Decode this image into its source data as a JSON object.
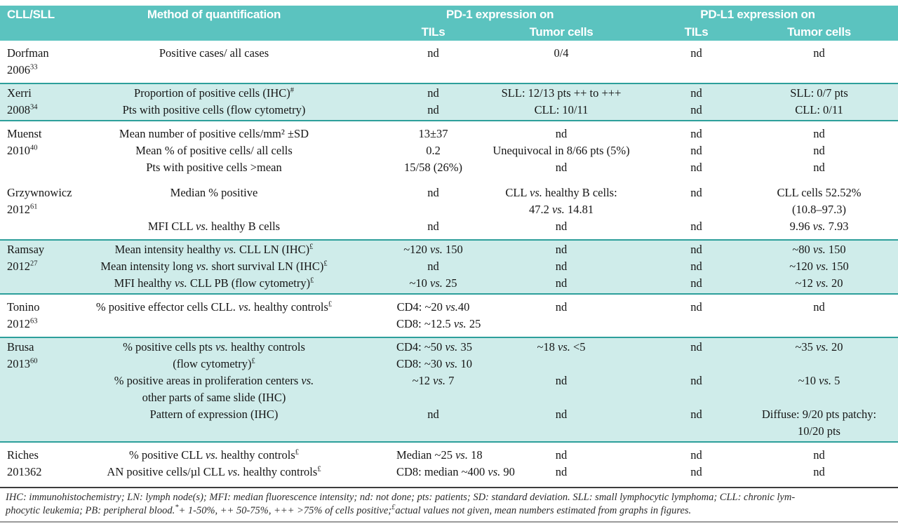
{
  "table": {
    "header": {
      "col1": "CLL/SLL",
      "col2": "Method of quantification",
      "pd1_group": "PD-1 expression on",
      "pdl1_group": "PD-L1 expression on",
      "sub": [
        "TILs",
        "Tumor cells",
        "TILs",
        "Tumor cells"
      ]
    },
    "groups": [
      {
        "study": {
          "name": "Dorfman",
          "year": "2006",
          "ref": "33"
        },
        "shaded": false,
        "rows": [
          {
            "method": [
              "Positive cases/ all cases"
            ],
            "pd1_tils": [
              "nd"
            ],
            "pd1_tumor": [
              "0/4"
            ],
            "pdl1_tils": [
              "nd"
            ],
            "pdl1_tumor": [
              "nd"
            ]
          }
        ]
      },
      {
        "study": {
          "name": "Xerri",
          "year": "2008",
          "ref": "34"
        },
        "shaded": true,
        "rows": [
          {
            "method": [
              "Proportion of positive cells (IHC)#"
            ],
            "pd1_tils": [
              "nd"
            ],
            "pd1_tumor": [
              "SLL: 12/13 pts ++ to +++"
            ],
            "pdl1_tils": [
              "nd"
            ],
            "pdl1_tumor": [
              "SLL: 0/7 pts"
            ]
          },
          {
            "method": [
              "Pts with positive cells (flow cytometry)"
            ],
            "pd1_tils": [
              "nd"
            ],
            "pd1_tumor": [
              "CLL: 10/11"
            ],
            "pdl1_tils": [
              "nd"
            ],
            "pdl1_tumor": [
              "CLL: 0/11"
            ]
          }
        ]
      },
      {
        "study": {
          "name": "Muenst",
          "year": "2010",
          "ref": "40"
        },
        "shaded": false,
        "rows": [
          {
            "method": [
              "Mean number of positive cells/mm² ±SD"
            ],
            "pd1_tils": [
              "13±37"
            ],
            "pd1_tumor": [
              "nd"
            ],
            "pdl1_tils": [
              "nd"
            ],
            "pdl1_tumor": [
              "nd"
            ]
          },
          {
            "method": [
              "Mean % of positive cells/ all cells"
            ],
            "pd1_tils": [
              "0.2"
            ],
            "pd1_tumor": [
              "Unequivocal in 8/66 pts (5%)"
            ],
            "pdl1_tils": [
              "nd"
            ],
            "pdl1_tumor": [
              "nd"
            ]
          },
          {
            "method": [
              "Pts with positive cells >mean"
            ],
            "pd1_tils": [
              "15/58 (26%)"
            ],
            "pd1_tumor": [
              "nd"
            ],
            "pdl1_tils": [
              "nd"
            ],
            "pdl1_tumor": [
              "nd"
            ]
          }
        ]
      },
      {
        "study": {
          "name": "Grzywnowicz",
          "year": "2012",
          "ref": "61"
        },
        "shaded": false,
        "rows": [
          {
            "method": [
              "Median % positive"
            ],
            "pd1_tils": [
              "nd"
            ],
            "pd1_tumor": [
              "CLL vs. healthy B cells:",
              "47.2 vs. 14.81"
            ],
            "pdl1_tils": [
              "nd"
            ],
            "pdl1_tumor": [
              "CLL cells 52.52%",
              "(10.8–97.3)"
            ]
          },
          {
            "method": [
              "MFI CLL vs. healthy B cells"
            ],
            "pd1_tils": [
              "nd"
            ],
            "pd1_tumor": [
              "nd"
            ],
            "pdl1_tils": [
              "nd"
            ],
            "pdl1_tumor": [
              "9.96 vs. 7.93"
            ]
          }
        ]
      },
      {
        "study": {
          "name": "Ramsay",
          "year": "2012",
          "ref": "27"
        },
        "shaded": true,
        "rows": [
          {
            "method": [
              "Mean intensity healthy vs. CLL LN (IHC)£"
            ],
            "pd1_tils": [
              "~120 vs. 150"
            ],
            "pd1_tumor": [
              "nd"
            ],
            "pdl1_tils": [
              "nd"
            ],
            "pdl1_tumor": [
              "~80 vs. 150"
            ]
          },
          {
            "method": [
              "Mean intensity long vs. short survival LN (IHC)£"
            ],
            "pd1_tils": [
              "nd"
            ],
            "pd1_tumor": [
              "nd"
            ],
            "pdl1_tils": [
              "nd"
            ],
            "pdl1_tumor": [
              "~120 vs. 150"
            ]
          },
          {
            "method": [
              "MFI healthy vs. CLL PB (flow cytometry)£"
            ],
            "pd1_tils": [
              "~10 vs. 25"
            ],
            "pd1_tumor": [
              "nd"
            ],
            "pdl1_tils": [
              "nd"
            ],
            "pdl1_tumor": [
              "~12 vs. 20"
            ]
          }
        ]
      },
      {
        "study": {
          "name": "Tonino",
          "year": "2012",
          "ref": "63"
        },
        "shaded": false,
        "rows": [
          {
            "method": [
              "% positive effector cells CLL. vs. healthy controls£"
            ],
            "pd1_tils": [
              "CD4: ~20 vs.40",
              "CD8: ~12.5 vs. 25"
            ],
            "pd1_tumor": [
              "nd"
            ],
            "pdl1_tils": [
              "nd"
            ],
            "pdl1_tumor": [
              "nd"
            ]
          }
        ]
      },
      {
        "study": {
          "name": "Brusa",
          "year": "2013",
          "ref": "60"
        },
        "shaded": true,
        "rows": [
          {
            "method": [
              "% positive cells pts vs. healthy controls",
              "(flow cytometry)£"
            ],
            "pd1_tils": [
              "CD4: ~50 vs. 35",
              "CD8: ~30 vs. 10"
            ],
            "pd1_tumor": [
              "~18 vs. <5"
            ],
            "pdl1_tils": [
              "nd"
            ],
            "pdl1_tumor": [
              "~35 vs. 20"
            ]
          },
          {
            "method": [
              "% positive areas in proliferation centers vs.",
              "other parts of same slide (IHC)"
            ],
            "pd1_tils": [
              "~12 vs. 7"
            ],
            "pd1_tumor": [
              "nd"
            ],
            "pdl1_tils": [
              "nd"
            ],
            "pdl1_tumor": [
              "~10 vs. 5"
            ]
          },
          {
            "method": [
              "Pattern of expression (IHC)"
            ],
            "pd1_tils": [
              "nd"
            ],
            "pd1_tumor": [
              "nd"
            ],
            "pdl1_tils": [
              "nd"
            ],
            "pdl1_tumor": [
              "Diffuse: 9/20 pts patchy:",
              "10/20 pts"
            ]
          }
        ]
      },
      {
        "study": {
          "name": "Riches",
          "year": "201362",
          "ref": ""
        },
        "shaded": false,
        "rows": [
          {
            "method": [
              "% positive CLL vs. healthy controls£"
            ],
            "pd1_tils": [
              "Median ~25 vs. 18"
            ],
            "pd1_tumor": [
              "nd"
            ],
            "pdl1_tils": [
              "nd"
            ],
            "pdl1_tumor": [
              "nd"
            ]
          },
          {
            "method": [
              "AN positive cells/µl CLL vs. healthy controls£"
            ],
            "pd1_tils": [
              "CD8: median ~400 vs. 90"
            ],
            "pd1_tumor": [
              "nd"
            ],
            "pdl1_tils": [
              "nd"
            ],
            "pdl1_tumor": [
              "nd"
            ]
          }
        ]
      }
    ],
    "footnote_lines": [
      "IHC: immunohistochemistry; LN: lymph node(s); MFI: median fluorescence intensity; nd: not done; pts: patients; SD: standard deviation. SLL: small lymphocytic lymphoma; CLL: chronic lym-",
      "phocytic leukemia; PB: peripheral blood.*+ 1-50%, ++ 50-75%, +++ >75% of cells positive;£actual values not given, mean numbers estimated from graphs in figures."
    ],
    "colors": {
      "header_teal": "#5bc3bf",
      "band_teal": "#cfecea",
      "band_border": "#2d9f9b",
      "rule_dark": "#3d3d3d"
    }
  }
}
